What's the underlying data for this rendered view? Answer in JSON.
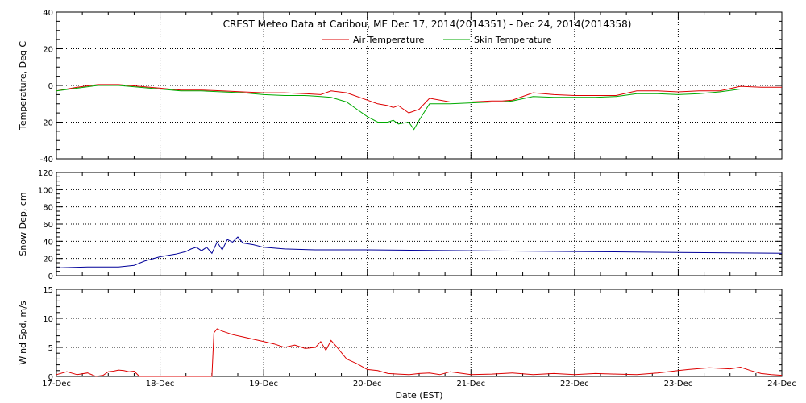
{
  "chart_data": [
    {
      "type": "line",
      "title": "CREST Meteo Data at Caribou, ME   Dec 17, 2014(2014351) - Dec 24, 2014(2014358)",
      "xlabel": "",
      "ylabel": "Temperature, Deg C",
      "ylim": [
        -40,
        40
      ],
      "yticks": [
        "40",
        "20",
        "0",
        "-20",
        "-40"
      ],
      "xlim": [
        0,
        7
      ],
      "grid": true,
      "legend": "top-center",
      "series": [
        {
          "name": "Air Temperature",
          "color": "#dd0000",
          "x": [
            0,
            0.2,
            0.4,
            0.6,
            0.8,
            1.0,
            1.2,
            1.4,
            1.6,
            1.8,
            2.0,
            2.2,
            2.4,
            2.55,
            2.65,
            2.8,
            3.0,
            3.1,
            3.2,
            3.25,
            3.3,
            3.4,
            3.5,
            3.6,
            3.8,
            4.0,
            4.2,
            4.3,
            4.4,
            4.6,
            4.8,
            5.0,
            5.2,
            5.4,
            5.6,
            5.8,
            6.0,
            6.2,
            6.4,
            6.6,
            6.8,
            7.0
          ],
          "y": [
            -3,
            -1,
            0.5,
            0.5,
            -0.5,
            -1.5,
            -2.5,
            -2.5,
            -3,
            -3.5,
            -4,
            -4,
            -4.5,
            -5,
            -3,
            -4,
            -8,
            -10,
            -11,
            -12,
            -11,
            -15,
            -13,
            -7,
            -9,
            -9,
            -8.5,
            -8.5,
            -8,
            -4,
            -5,
            -5.5,
            -5.5,
            -5.5,
            -3,
            -3,
            -3.5,
            -3,
            -3,
            -0.5,
            -1,
            -1
          ]
        },
        {
          "name": "Skin Temperature",
          "color": "#00aa00",
          "x": [
            0,
            0.2,
            0.4,
            0.6,
            0.8,
            1.0,
            1.2,
            1.4,
            1.6,
            1.8,
            2.0,
            2.2,
            2.4,
            2.55,
            2.65,
            2.8,
            2.9,
            3.0,
            3.1,
            3.2,
            3.25,
            3.3,
            3.4,
            3.45,
            3.5,
            3.6,
            3.8,
            4.0,
            4.2,
            4.3,
            4.4,
            4.6,
            4.8,
            5.0,
            5.2,
            5.4,
            5.6,
            5.8,
            6.0,
            6.2,
            6.4,
            6.6,
            6.8,
            7.0
          ],
          "y": [
            -3,
            -1.5,
            0,
            0,
            -1,
            -2,
            -3,
            -3,
            -3.5,
            -4,
            -5,
            -5.5,
            -5.5,
            -6,
            -6.5,
            -9,
            -13,
            -17,
            -20,
            -20,
            -19,
            -21,
            -20,
            -24,
            -19,
            -10,
            -10,
            -9.5,
            -9,
            -9,
            -8.5,
            -6,
            -6.5,
            -6.5,
            -6.5,
            -6,
            -4.5,
            -4.5,
            -5,
            -4.5,
            -3.5,
            -2,
            -2,
            -2
          ]
        }
      ]
    },
    {
      "type": "line",
      "xlabel": "",
      "ylabel": "Snow Dep, cm",
      "ylim": [
        0,
        120
      ],
      "yticks": [
        "120",
        "100",
        "80",
        "60",
        "40",
        "20",
        "0"
      ],
      "xlim": [
        0,
        7
      ],
      "grid": true,
      "series": [
        {
          "name": "",
          "color": "#000099",
          "x": [
            0,
            0.3,
            0.6,
            0.75,
            0.85,
            1.0,
            1.15,
            1.25,
            1.3,
            1.35,
            1.4,
            1.45,
            1.5,
            1.55,
            1.6,
            1.65,
            1.7,
            1.75,
            1.8,
            1.9,
            2.0,
            2.2,
            2.5,
            3.0,
            4.0,
            5.0,
            6.0,
            7.0
          ],
          "y": [
            9,
            10,
            10,
            12,
            17,
            22,
            25,
            28,
            31,
            33,
            29,
            33,
            26,
            39,
            30,
            42,
            39,
            45,
            38,
            36,
            33,
            31,
            30,
            30,
            29,
            28,
            27,
            26
          ]
        }
      ]
    },
    {
      "type": "line",
      "xlabel": "Date (EST)",
      "ylabel": "Wind Spd, m/s",
      "ylim": [
        0,
        15
      ],
      "yticks": [
        "15",
        "10",
        "5",
        "0"
      ],
      "xlim": [
        0,
        7
      ],
      "x_tick_labels": [
        "17-Dec",
        "18-Dec",
        "19-Dec",
        "20-Dec",
        "21-Dec",
        "22-Dec",
        "23-Dec",
        "24-Dec"
      ],
      "grid": true,
      "series": [
        {
          "name": "",
          "color": "#dd0000",
          "x": [
            0,
            0.1,
            0.2,
            0.3,
            0.38,
            0.45,
            0.5,
            0.55,
            0.6,
            0.65,
            0.7,
            0.75,
            0.8,
            0.85,
            0.9,
            1.0,
            1.2,
            1.4,
            1.5,
            1.52,
            1.55,
            1.6,
            1.7,
            1.8,
            2.0,
            2.1,
            2.2,
            2.3,
            2.4,
            2.5,
            2.55,
            2.6,
            2.65,
            2.7,
            2.8,
            2.9,
            3.0,
            3.1,
            3.2,
            3.3,
            3.4,
            3.5,
            3.6,
            3.7,
            3.8,
            4.0,
            4.2,
            4.4,
            4.6,
            4.8,
            5.0,
            5.2,
            5.4,
            5.6,
            5.8,
            6.0,
            6.1,
            6.3,
            6.5,
            6.6,
            6.7,
            6.8,
            6.9,
            7.0
          ],
          "y": [
            0.3,
            0.8,
            0.3,
            0.6,
            0,
            0.2,
            0.8,
            0.9,
            1.1,
            1.0,
            0.8,
            0.9,
            0,
            0,
            0,
            0,
            0,
            0,
            0,
            7.5,
            8.2,
            7.8,
            7.2,
            6.8,
            6.0,
            5.6,
            5.0,
            5.4,
            4.8,
            5.0,
            6.0,
            4.5,
            6.2,
            5.2,
            3.0,
            2.2,
            1.2,
            1.0,
            0.5,
            0.4,
            0.3,
            0.5,
            0.6,
            0.3,
            0.8,
            0.3,
            0.4,
            0.6,
            0.3,
            0.5,
            0.3,
            0.5,
            0.4,
            0.3,
            0.6,
            1.0,
            1.2,
            1.5,
            1.3,
            1.6,
            1.0,
            0.5,
            0.3,
            0.2
          ]
        }
      ]
    }
  ]
}
